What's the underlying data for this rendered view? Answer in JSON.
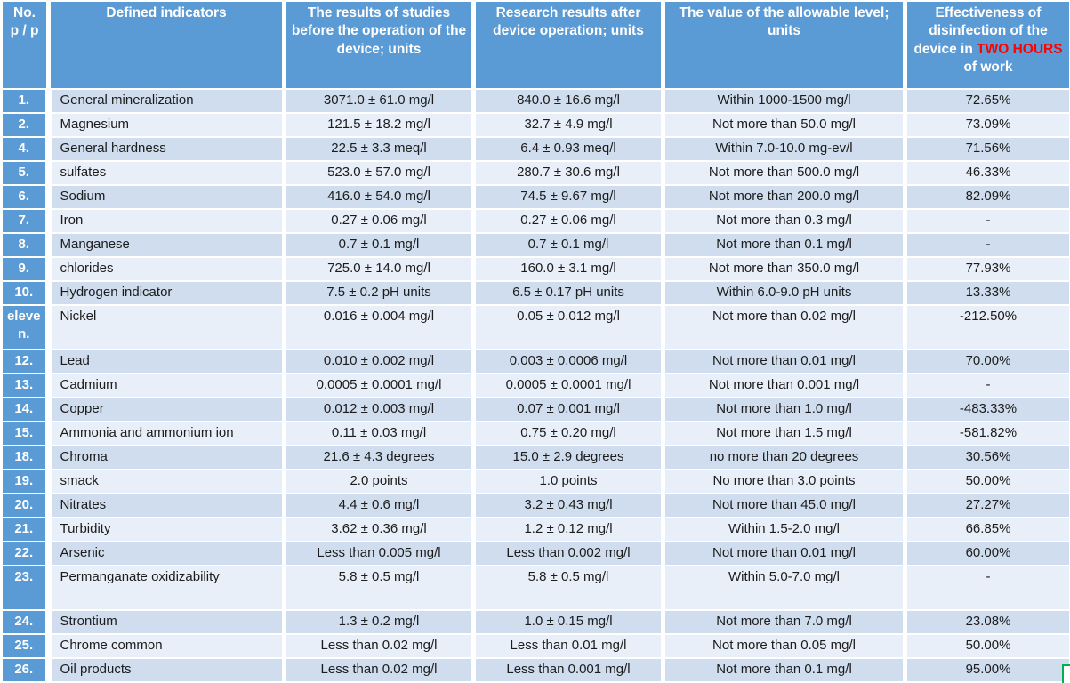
{
  "colors": {
    "header_bg": "#5b9bd5",
    "band_dark": "#cfddee",
    "band_light": "#e9eff8",
    "header_text": "#ffffff",
    "body_text": "#1c1c1c",
    "highlight_red": "#ff0000",
    "divider": "#ffffff",
    "handle_green": "#00b050"
  },
  "table": {
    "headers": {
      "col1": "No.\np / p",
      "col2": "Defined indicators",
      "col3": "The results of studies before the operation of the device; units",
      "col4": "Research results after device operation; units",
      "col5": "The value of the allowable level; units",
      "col6_prefix": "Effectiveness of disinfection of the device in ",
      "col6_highlight": "TWO HOURS",
      "col6_suffix": " of work"
    },
    "rows": [
      {
        "num": "1.",
        "indicator": "General mineralization",
        "before": "3071.0 ± 61.0 mg/l",
        "after": "840.0 ± 16.6 mg/l",
        "allowable": "Within 1000-1500 mg/l",
        "effectiveness": "72.65%"
      },
      {
        "num": "2.",
        "indicator": "Magnesium",
        "before": "121.5 ± 18.2 mg/l",
        "after": "32.7 ± 4.9 mg/l",
        "allowable": "Not more than 50.0 mg/l",
        "effectiveness": "73.09%"
      },
      {
        "num": "4.",
        "indicator": "General hardness",
        "before": "22.5 ± 3.3 meq/l",
        "after": "6.4 ± 0.93 meq/l",
        "allowable": "Within 7.0-10.0 mg-ev/l",
        "effectiveness": "71.56%"
      },
      {
        "num": "5.",
        "indicator": "sulfates",
        "before": "523.0 ± 57.0 mg/l",
        "after": "280.7 ± 30.6 mg/l",
        "allowable": "Not more than 500.0 mg/l",
        "effectiveness": "46.33%"
      },
      {
        "num": "6.",
        "indicator": "Sodium",
        "before": "416.0 ± 54.0 mg/l",
        "after": "74.5 ± 9.67 mg/l",
        "allowable": "Not more than 200.0 mg/l",
        "effectiveness": "82.09%"
      },
      {
        "num": "7.",
        "indicator": "Iron",
        "before": "0.27 ± 0.06 mg/l",
        "after": "0.27 ± 0.06 mg/l",
        "allowable": "Not more than 0.3 mg/l",
        "effectiveness": "-"
      },
      {
        "num": "8.",
        "indicator": "Manganese",
        "before": "0.7 ± 0.1 mg/l",
        "after": "0.7 ± 0.1 mg/l",
        "allowable": "Not more than 0.1 mg/l",
        "effectiveness": "-"
      },
      {
        "num": "9.",
        "indicator": "chlorides",
        "before": "725.0 ± 14.0 mg/l",
        "after": "160.0 ± 3.1 mg/l",
        "allowable": "Not more than 350.0 mg/l",
        "effectiveness": "77.93%"
      },
      {
        "num": "10.",
        "indicator": "Hydrogen indicator",
        "before": "7.5 ± 0.2 pH units",
        "after": "6.5 ± 0.17 pH units",
        "allowable": "Within 6.0-9.0 pH units",
        "effectiveness": "13.33%"
      },
      {
        "num": "eleven.",
        "indicator": "Nickel",
        "before": "0.016 ± 0.004 mg/l",
        "after": "0.05 ± 0.012 mg/l",
        "allowable": "Not more than 0.02 mg/l",
        "effectiveness": "-212.50%",
        "size": "tall"
      },
      {
        "num": "12.",
        "indicator": "Lead",
        "before": "0.010 ± 0.002 mg/l",
        "after": "0.003 ± 0.0006 mg/l",
        "allowable": "Not more than 0.01 mg/l",
        "effectiveness": "70.00%"
      },
      {
        "num": "13.",
        "indicator": "Cadmium",
        "before": "0.0005 ± 0.0001 mg/l",
        "after": "0.0005 ± 0.0001 mg/l",
        "allowable": "Not more than 0.001 mg/l",
        "effectiveness": "-"
      },
      {
        "num": "14.",
        "indicator": "Copper",
        "before": "0.012 ± 0.003 mg/l",
        "after": "0.07 ± 0.001 mg/l",
        "allowable": "Not more than 1.0 mg/l",
        "effectiveness": "-483.33%"
      },
      {
        "num": "15.",
        "indicator": "Ammonia and ammonium ion",
        "before": "0.11 ± 0.03 mg/l",
        "after": "0.75 ± 0.20 mg/l",
        "allowable": "Not more than 1.5 mg/l",
        "effectiveness": "-581.82%"
      },
      {
        "num": "18.",
        "indicator": "Chroma",
        "before": "21.6 ± 4.3 degrees",
        "after": "15.0 ± 2.9 degrees",
        "allowable": "no more than 20 degrees",
        "effectiveness": "30.56%"
      },
      {
        "num": "19.",
        "indicator": "smack",
        "before": "2.0 points",
        "after": "1.0 points",
        "allowable": "No more than 3.0 points",
        "effectiveness": "50.00%"
      },
      {
        "num": "20.",
        "indicator": "Nitrates",
        "before": "4.4 ± 0.6 mg/l",
        "after": "3.2 ± 0.43 mg/l",
        "allowable": "Not more than 45.0 mg/l",
        "effectiveness": "27.27%"
      },
      {
        "num": "21.",
        "indicator": "Turbidity",
        "before": "3.62 ± 0.36 mg/l",
        "after": "1.2 ± 0.12 mg/l",
        "allowable": "Within 1.5-2.0 mg/l",
        "effectiveness": "66.85%"
      },
      {
        "num": "22.",
        "indicator": "Arsenic",
        "before": "Less than 0.005 mg/l",
        "after": "Less than 0.002 mg/l",
        "allowable": "Not more than 0.01 mg/l",
        "effectiveness": "60.00%"
      },
      {
        "num": "23.",
        "indicator": "Permanganate oxidizability",
        "before": "5.8 ± 0.5 mg/l",
        "after": "5.8 ± 0.5 mg/l",
        "allowable": "Within 5.0-7.0 mg/l",
        "effectiveness": "-",
        "size": "tall"
      },
      {
        "num": "24.",
        "indicator": "Strontium",
        "before": "1.3 ± 0.2 mg/l",
        "after": "1.0 ± 0.15 mg/l",
        "allowable": "Not more than 7.0 mg/l",
        "effectiveness": "23.08%"
      },
      {
        "num": "25.",
        "indicator": "Chrome common",
        "before": "Less than 0.02 mg/l",
        "after": "Less than 0.01 mg/l",
        "allowable": "Not more than 0.05 mg/l",
        "effectiveness": "50.00%"
      },
      {
        "num": "26.",
        "indicator": "Oil products",
        "before": "Less than 0.02 mg/l",
        "after": "Less than 0.001 mg/l",
        "allowable": "Not more than 0.1 mg/l",
        "effectiveness": "95.00%"
      }
    ]
  }
}
